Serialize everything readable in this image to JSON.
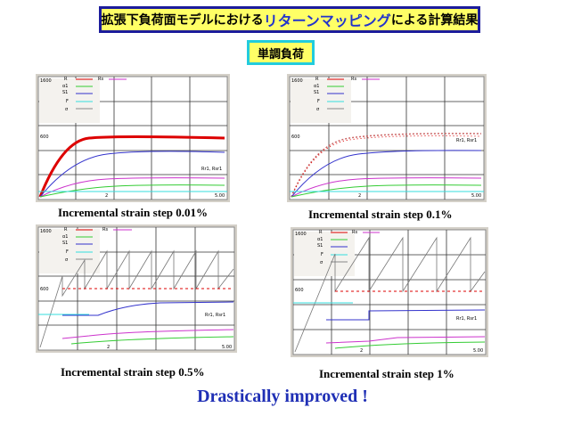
{
  "title": {
    "pre": "拡張下負荷面モデルにおける",
    "highlight": "リターンマッピング",
    "post": "による計算結果"
  },
  "subtitle": "単調負荷",
  "legend": {
    "r": "R",
    "rs": "Rs",
    "alpha": "α1",
    "s1": "S1",
    "f": "F",
    "sigma": "σ"
  },
  "axis": {
    "ytop": "1600",
    "ymid": "600",
    "xmid": "2",
    "xend": "5.00",
    "curve_label": "Rr1, Rsr1"
  },
  "panels": [
    {
      "caption": "Incremental strain step 0.01%"
    },
    {
      "caption": "Incremental strain step 0.1%"
    },
    {
      "caption": "Incremental strain step 0.5%"
    },
    {
      "caption": "Incremental strain step 1%"
    }
  ],
  "footer": "Drastically improved !",
  "colors": {
    "title_bg": "#ffff66",
    "title_border": "#1c1c9c",
    "subtitle_border": "#22ccdd",
    "footer": "#1f2fb5"
  }
}
